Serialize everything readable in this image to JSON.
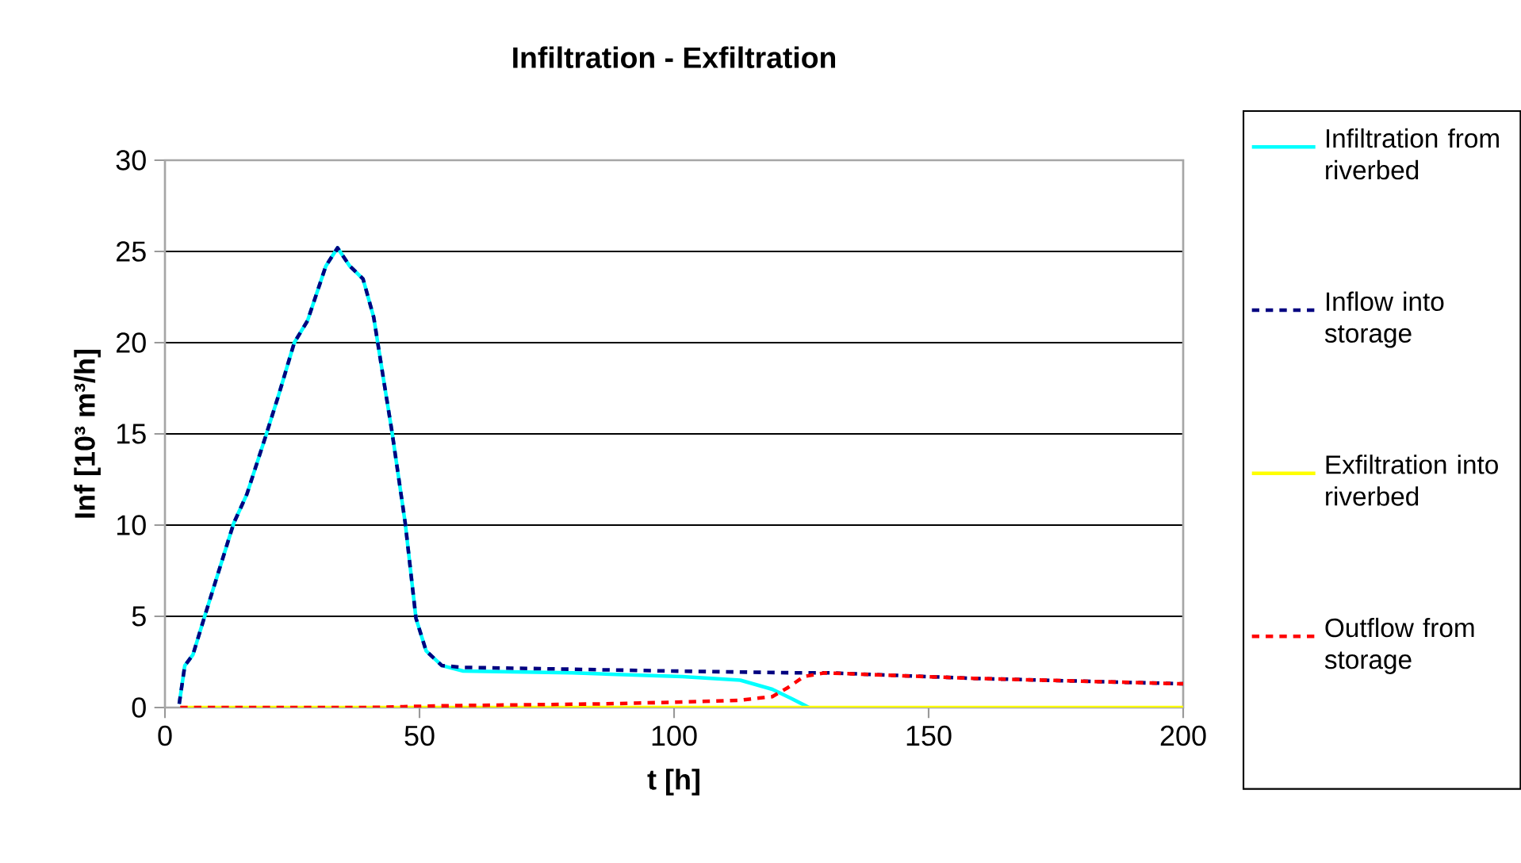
{
  "chart_data": {
    "type": "line",
    "title": "Infiltration - Exfiltration",
    "xlabel": "t [h]",
    "ylabel": "Inf [10³ m³/h]",
    "xlim": [
      0,
      200
    ],
    "xticks": [
      0,
      50,
      100,
      150,
      200
    ],
    "ylim": [
      0,
      30
    ],
    "yticks": [
      0,
      5,
      10,
      15,
      20,
      25,
      30
    ],
    "grid": "y",
    "legend": "right",
    "marker": "none",
    "series": [
      {
        "name": "Infiltration from riverbed",
        "color": "#00ffff",
        "line_style": "solid",
        "x": [
          2.8,
          3.9,
          5.5,
          7.8,
          13.5,
          16.1,
          19.7,
          22.3,
          25.4,
          28.0,
          31.6,
          33.9,
          36.3,
          38.9,
          41.0,
          43.1,
          44.6,
          47.2,
          49.3,
          51.3,
          54.4,
          58.6,
          80,
          101.6,
          113,
          119.3,
          123,
          126.5
        ],
        "values": [
          0.2,
          2.3,
          2.9,
          5.0,
          10.1,
          11.7,
          14.8,
          17.1,
          20.0,
          21.2,
          24.2,
          25.2,
          24.2,
          23.5,
          21.4,
          17.7,
          15.1,
          10.1,
          4.9,
          3.1,
          2.3,
          2.0,
          1.9,
          1.7,
          1.5,
          1.0,
          0.5,
          0
        ]
      },
      {
        "name": "Inflow into storage",
        "color": "#000080",
        "line_style": "dashed",
        "x": [
          2.8,
          3.9,
          5.5,
          7.8,
          13.5,
          16.1,
          19.7,
          22.3,
          25.4,
          28.0,
          31.6,
          33.9,
          36.3,
          38.9,
          41.0,
          43.1,
          44.6,
          47.2,
          49.3,
          51.3,
          54.4,
          58.6,
          80,
          99.6,
          124.5,
          130.7,
          158.7,
          200
        ],
        "values": [
          0.2,
          2.3,
          2.9,
          5.0,
          10.1,
          11.7,
          14.8,
          17.1,
          20.0,
          21.2,
          24.2,
          25.2,
          24.2,
          23.5,
          21.4,
          17.7,
          15.1,
          10.1,
          4.9,
          3.1,
          2.3,
          2.2,
          2.1,
          2.0,
          1.9,
          1.9,
          1.6,
          1.3
        ]
      },
      {
        "name": "Exfiltration into riverbed",
        "color": "#ffff00",
        "line_style": "solid",
        "x": [
          3,
          200
        ],
        "values": [
          0,
          0
        ]
      },
      {
        "name": "Outflow from storage",
        "color": "#ff0000",
        "line_style": "dashed",
        "x": [
          3,
          40,
          55,
          86,
          101.6,
          113,
          119.3,
          122.4,
          125.5,
          129.6,
          158.7,
          200
        ],
        "values": [
          0,
          0,
          0.1,
          0.2,
          0.3,
          0.4,
          0.6,
          1.1,
          1.7,
          1.9,
          1.6,
          1.3
        ]
      }
    ]
  }
}
